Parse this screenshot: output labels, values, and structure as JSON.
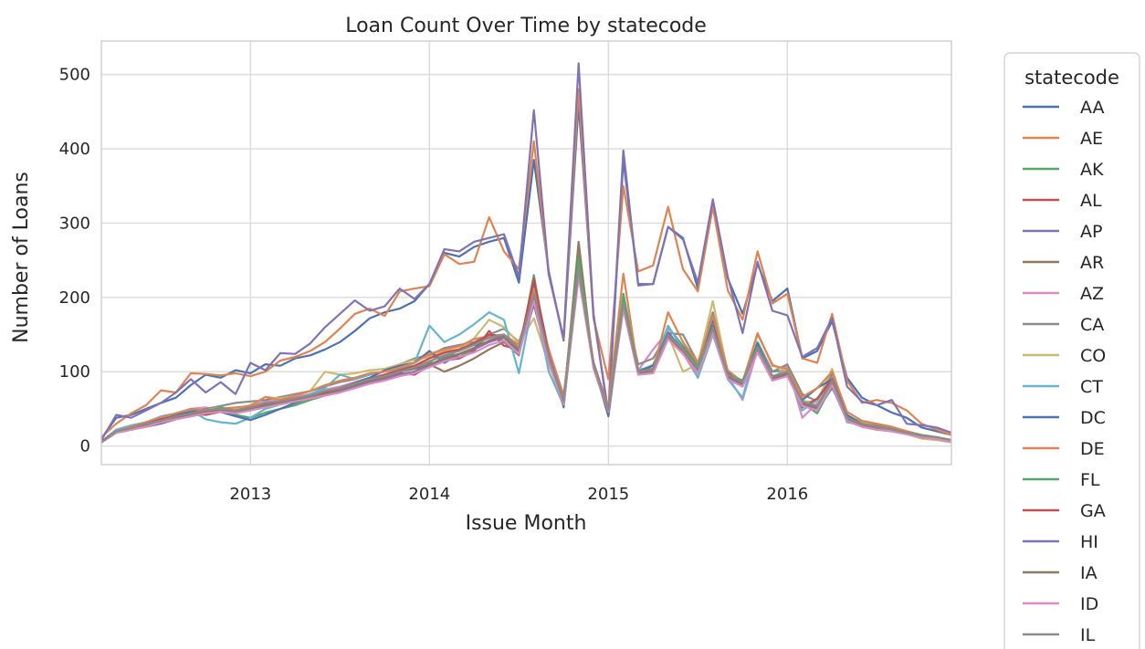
{
  "chart_data": {
    "type": "line",
    "title": "Loan Count Over Time by statecode",
    "xlabel": "Issue Month",
    "ylabel": "Number of Loans",
    "x_tick_labels": [
      "2013",
      "2014",
      "2015",
      "2016"
    ],
    "y_ticks": [
      0,
      100,
      200,
      300,
      400,
      500
    ],
    "xlim": [
      "2012-03",
      "2016-12"
    ],
    "ylim": [
      -25,
      545
    ],
    "grid": true,
    "legend": {
      "title": "statecode",
      "placement": "outside-right"
    },
    "x": [
      "2012-03",
      "2012-04",
      "2012-05",
      "2012-06",
      "2012-07",
      "2012-08",
      "2012-09",
      "2012-10",
      "2012-11",
      "2012-12",
      "2013-01",
      "2013-02",
      "2013-03",
      "2013-04",
      "2013-05",
      "2013-06",
      "2013-07",
      "2013-08",
      "2013-09",
      "2013-10",
      "2013-11",
      "2013-12",
      "2014-01",
      "2014-02",
      "2014-03",
      "2014-04",
      "2014-05",
      "2014-06",
      "2014-07",
      "2014-08",
      "2014-09",
      "2014-10",
      "2014-11",
      "2014-12",
      "2015-01",
      "2015-02",
      "2015-03",
      "2015-04",
      "2015-05",
      "2015-06",
      "2015-07",
      "2015-08",
      "2015-09",
      "2015-10",
      "2015-11",
      "2015-12",
      "2016-01",
      "2016-02",
      "2016-03",
      "2016-04",
      "2016-05",
      "2016-06",
      "2016-07",
      "2016-08",
      "2016-09",
      "2016-10",
      "2016-11",
      "2016-12"
    ],
    "series": [
      {
        "name": "AA",
        "color": "#4c72b0",
        "values": [
          10,
          38,
          42,
          50,
          58,
          65,
          82,
          96,
          92,
          102,
          98,
          110,
          108,
          118,
          122,
          130,
          140,
          155,
          172,
          180,
          185,
          195,
          218,
          260,
          255,
          268,
          275,
          280,
          220,
          385,
          235,
          142,
          460,
          178,
          42,
          385,
          218,
          218,
          295,
          280,
          212,
          330,
          226,
          178,
          245,
          195,
          212,
          118,
          128,
          168,
          92,
          65,
          55,
          45,
          38,
          25,
          20,
          15
        ]
      },
      {
        "name": "AE",
        "color": "#dd8452",
        "values": [
          12,
          30,
          44,
          55,
          75,
          72,
          98,
          97,
          95,
          98,
          94,
          100,
          115,
          120,
          128,
          140,
          158,
          178,
          185,
          175,
          208,
          212,
          215,
          258,
          245,
          248,
          308,
          262,
          238,
          410,
          230,
          144,
          480,
          172,
          90,
          350,
          235,
          243,
          322,
          238,
          208,
          322,
          210,
          170,
          262,
          192,
          205,
          118,
          112,
          178,
          88,
          58,
          62,
          58,
          48,
          30,
          22,
          15
        ]
      },
      {
        "name": "AK",
        "color": "#55a868",
        "values": [
          5,
          18,
          22,
          28,
          35,
          38,
          45,
          42,
          48,
          42,
          38,
          45,
          50,
          55,
          62,
          68,
          72,
          80,
          85,
          90,
          96,
          100,
          112,
          128,
          120,
          132,
          148,
          142,
          125,
          228,
          120,
          62,
          262,
          108,
          48,
          205,
          102,
          108,
          160,
          135,
          112,
          162,
          98,
          88,
          140,
          100,
          102,
          62,
          48,
          78,
          40,
          32,
          28,
          25,
          20,
          15,
          12,
          8
        ]
      },
      {
        "name": "AL",
        "color": "#c44e52",
        "values": [
          5,
          18,
          25,
          30,
          38,
          42,
          48,
          46,
          50,
          48,
          52,
          58,
          58,
          62,
          68,
          72,
          75,
          82,
          88,
          92,
          98,
          96,
          108,
          115,
          118,
          128,
          155,
          135,
          130,
          220,
          128,
          65,
          238,
          112,
          52,
          195,
          98,
          100,
          148,
          128,
          108,
          162,
          95,
          88,
          132,
          92,
          100,
          58,
          52,
          92,
          38,
          28,
          25,
          22,
          18,
          12,
          10,
          6
        ]
      },
      {
        "name": "AP",
        "color": "#8172b3",
        "values": [
          8,
          42,
          38,
          48,
          58,
          72,
          90,
          72,
          86,
          70,
          112,
          102,
          125,
          124,
          138,
          160,
          178,
          196,
          182,
          188,
          212,
          198,
          218,
          265,
          262,
          275,
          280,
          285,
          228,
          452,
          232,
          145,
          515,
          176,
          45,
          398,
          216,
          218,
          295,
          278,
          220,
          332,
          228,
          152,
          248,
          182,
          176,
          120,
          132,
          172,
          80,
          60,
          55,
          62,
          30,
          28,
          25,
          18
        ]
      },
      {
        "name": "AR",
        "color": "#937860",
        "values": [
          5,
          20,
          22,
          28,
          32,
          38,
          40,
          44,
          46,
          44,
          48,
          55,
          56,
          60,
          66,
          70,
          74,
          80,
          86,
          92,
          100,
          104,
          110,
          100,
          108,
          118,
          130,
          140,
          122,
          210,
          118,
          58,
          275,
          105,
          45,
          190,
          98,
          100,
          150,
          132,
          108,
          160,
          94,
          86,
          130,
          94,
          100,
          60,
          50,
          98,
          40,
          28,
          24,
          20,
          16,
          12,
          10,
          6
        ]
      },
      {
        "name": "AZ",
        "color": "#da8bc3",
        "values": [
          6,
          22,
          26,
          32,
          38,
          44,
          50,
          52,
          48,
          50,
          55,
          60,
          62,
          66,
          70,
          76,
          80,
          86,
          92,
          96,
          104,
          108,
          118,
          125,
          130,
          140,
          145,
          150,
          130,
          200,
          122,
          62,
          245,
          110,
          50,
          200,
          102,
          130,
          155,
          125,
          92,
          150,
          94,
          62,
          130,
          90,
          108,
          38,
          58,
          80,
          35,
          28,
          24,
          20,
          16,
          12,
          10,
          6
        ]
      },
      {
        "name": "CA",
        "color": "#8c8c8c",
        "values": [
          5,
          20,
          24,
          30,
          34,
          40,
          46,
          50,
          54,
          58,
          60,
          62,
          66,
          70,
          74,
          80,
          86,
          90,
          96,
          100,
          110,
          118,
          122,
          132,
          136,
          140,
          150,
          158,
          140,
          198,
          130,
          68,
          240,
          112,
          52,
          195,
          110,
          118,
          152,
          150,
          112,
          180,
          100,
          80,
          140,
          100,
          110,
          70,
          60,
          98,
          38,
          30,
          28,
          24,
          18,
          14,
          12,
          8
        ]
      },
      {
        "name": "CO",
        "color": "#ccb974",
        "values": [
          5,
          18,
          22,
          28,
          32,
          36,
          44,
          48,
          52,
          50,
          55,
          66,
          64,
          68,
          74,
          100,
          96,
          98,
          102,
          104,
          110,
          116,
          120,
          128,
          130,
          145,
          170,
          160,
          138,
          172,
          110,
          58,
          238,
          108,
          50,
          190,
          100,
          110,
          150,
          100,
          110,
          195,
          100,
          80,
          150,
          110,
          100,
          60,
          60,
          104,
          40,
          32,
          26,
          20,
          16,
          10,
          8,
          5
        ]
      },
      {
        "name": "CT",
        "color": "#64b5cd",
        "values": [
          6,
          22,
          28,
          32,
          40,
          44,
          48,
          36,
          32,
          30,
          38,
          50,
          56,
          62,
          70,
          78,
          96,
          90,
          96,
          100,
          104,
          112,
          162,
          140,
          150,
          164,
          180,
          170,
          98,
          200,
          100,
          55,
          240,
          110,
          45,
          190,
          102,
          108,
          162,
          130,
          92,
          150,
          90,
          65,
          140,
          92,
          100,
          48,
          62,
          92,
          32,
          28,
          22,
          20,
          16,
          12,
          10,
          6
        ]
      },
      {
        "name": "DC",
        "color": "#4c72b0",
        "values": [
          6,
          20,
          24,
          30,
          35,
          42,
          46,
          48,
          46,
          40,
          35,
          42,
          50,
          58,
          65,
          72,
          78,
          85,
          92,
          102,
          108,
          112,
          128,
          112,
          124,
          132,
          150,
          148,
          130,
          222,
          128,
          52,
          248,
          110,
          40,
          190,
          100,
          108,
          152,
          130,
          100,
          170,
          100,
          86,
          138,
          92,
          98,
          62,
          78,
          90,
          42,
          30,
          26,
          22,
          18,
          14,
          12,
          6
        ]
      },
      {
        "name": "DE",
        "color": "#dd8452",
        "values": [
          6,
          20,
          26,
          32,
          38,
          44,
          50,
          48,
          50,
          52,
          54,
          66,
          62,
          68,
          74,
          82,
          88,
          92,
          98,
          100,
          106,
          112,
          124,
          130,
          134,
          144,
          148,
          150,
          136,
          210,
          130,
          64,
          250,
          112,
          52,
          232,
          100,
          102,
          180,
          140,
          112,
          175,
          102,
          86,
          152,
          108,
          104,
          66,
          78,
          100,
          46,
          34,
          30,
          26,
          20,
          14,
          12,
          8
        ]
      },
      {
        "name": "FL",
        "color": "#55a868",
        "values": [
          5,
          18,
          22,
          28,
          32,
          38,
          42,
          46,
          52,
          46,
          48,
          54,
          58,
          62,
          66,
          70,
          76,
          82,
          86,
          90,
          96,
          100,
          108,
          120,
          124,
          132,
          140,
          148,
          125,
          230,
          115,
          56,
          252,
          108,
          48,
          200,
          100,
          104,
          148,
          130,
          108,
          160,
          96,
          88,
          134,
          92,
          100,
          58,
          44,
          82,
          38,
          30,
          26,
          22,
          18,
          12,
          10,
          6
        ]
      },
      {
        "name": "GA",
        "color": "#c44e52",
        "values": [
          6,
          20,
          24,
          30,
          36,
          40,
          44,
          42,
          46,
          48,
          52,
          56,
          60,
          64,
          68,
          72,
          78,
          84,
          90,
          96,
          102,
          108,
          118,
          126,
          130,
          138,
          150,
          146,
          130,
          225,
          122,
          60,
          232,
          112,
          48,
          190,
          100,
          98,
          148,
          128,
          100,
          158,
          96,
          84,
          132,
          92,
          100,
          52,
          64,
          90,
          36,
          26,
          22,
          20,
          16,
          12,
          10,
          6
        ]
      },
      {
        "name": "HI",
        "color": "#8172b3",
        "values": [
          5,
          18,
          22,
          26,
          30,
          36,
          40,
          44,
          48,
          46,
          50,
          54,
          58,
          62,
          66,
          70,
          74,
          80,
          86,
          90,
          96,
          100,
          108,
          116,
          124,
          130,
          140,
          146,
          128,
          190,
          115,
          56,
          230,
          108,
          46,
          185,
          98,
          100,
          146,
          124,
          100,
          154,
          92,
          82,
          128,
          90,
          96,
          56,
          50,
          80,
          34,
          26,
          24,
          20,
          16,
          12,
          10,
          6
        ]
      },
      {
        "name": "IA",
        "color": "#937860",
        "values": [
          5,
          18,
          22,
          28,
          34,
          38,
          42,
          46,
          48,
          46,
          50,
          55,
          58,
          62,
          66,
          70,
          76,
          82,
          88,
          92,
          100,
          104,
          110,
          118,
          124,
          132,
          142,
          148,
          128,
          200,
          118,
          58,
          235,
          108,
          46,
          188,
          98,
          100,
          148,
          128,
          102,
          156,
          94,
          84,
          130,
          92,
          98,
          58,
          52,
          84,
          36,
          28,
          24,
          20,
          16,
          12,
          10,
          6
        ]
      },
      {
        "name": "ID",
        "color": "#da8bc3",
        "values": [
          5,
          18,
          22,
          26,
          32,
          36,
          40,
          44,
          46,
          44,
          48,
          52,
          56,
          60,
          64,
          68,
          72,
          78,
          84,
          88,
          94,
          98,
          106,
          114,
          120,
          126,
          136,
          142,
          124,
          195,
          112,
          56,
          228,
          106,
          46,
          184,
          96,
          98,
          144,
          124,
          98,
          152,
          90,
          80,
          126,
          88,
          94,
          54,
          48,
          82,
          34,
          26,
          22,
          20,
          16,
          12,
          10,
          6
        ]
      },
      {
        "name": "IL",
        "color": "#8c8c8c",
        "values": [
          5,
          20,
          24,
          30,
          34,
          40,
          44,
          48,
          50,
          48,
          52,
          58,
          60,
          64,
          68,
          74,
          78,
          84,
          90,
          94,
          100,
          106,
          114,
          122,
          128,
          136,
          146,
          150,
          132,
          205,
          120,
          60,
          238,
          110,
          48,
          192,
          100,
          104,
          150,
          130,
          104,
          158,
          96,
          86,
          132,
          94,
          100,
          60,
          54,
          88,
          38,
          30,
          26,
          22,
          18,
          14,
          12,
          8
        ]
      }
    ]
  }
}
